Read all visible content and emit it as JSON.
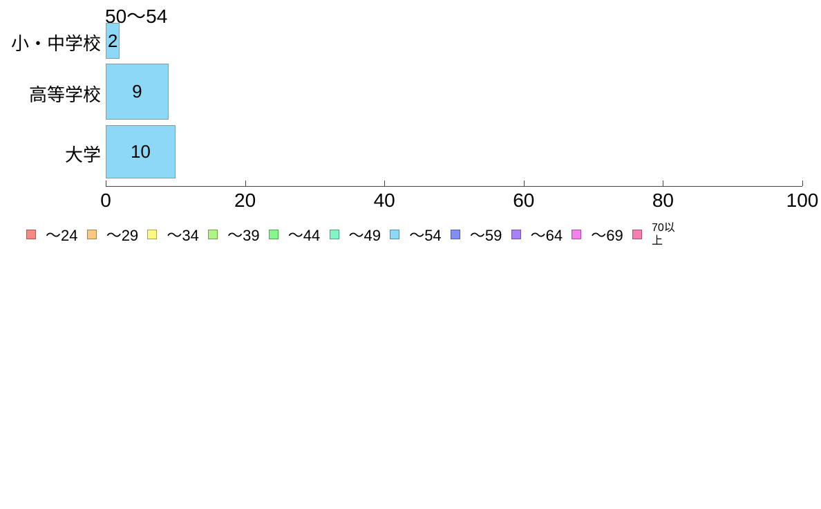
{
  "chart_data": {
    "type": "bar",
    "orientation": "horizontal",
    "title": "50〜54",
    "categories": [
      "小・中学校",
      "高等学校",
      "大学"
    ],
    "values": [
      2,
      9,
      10
    ],
    "value_labels": [
      "2",
      "9",
      "10"
    ],
    "bar_color": "#8DD8F7",
    "xlabel": "",
    "ylabel": "",
    "xlim": [
      0,
      100
    ],
    "x_ticks": [
      0,
      20,
      40,
      60,
      80,
      100
    ],
    "x_tick_labels": [
      "0",
      "20",
      "40",
      "60",
      "80",
      "100"
    ],
    "grid": false,
    "legend_position": "bottom",
    "legend": [
      {
        "label": "〜24",
        "color": "#F98A82"
      },
      {
        "label": "〜29",
        "color": "#FBC883"
      },
      {
        "label": "〜34",
        "color": "#FAF983"
      },
      {
        "label": "〜39",
        "color": "#AFF585"
      },
      {
        "label": "〜44",
        "color": "#85F78D"
      },
      {
        "label": "〜49",
        "color": "#83F5C4"
      },
      {
        "label": "〜54",
        "color": "#89D9F7"
      },
      {
        "label": "〜59",
        "color": "#818EF5"
      },
      {
        "label": "〜64",
        "color": "#A981F7"
      },
      {
        "label": "〜69",
        "color": "#F580EE"
      },
      {
        "label": "70以上",
        "color": "#F77EB0"
      }
    ]
  }
}
